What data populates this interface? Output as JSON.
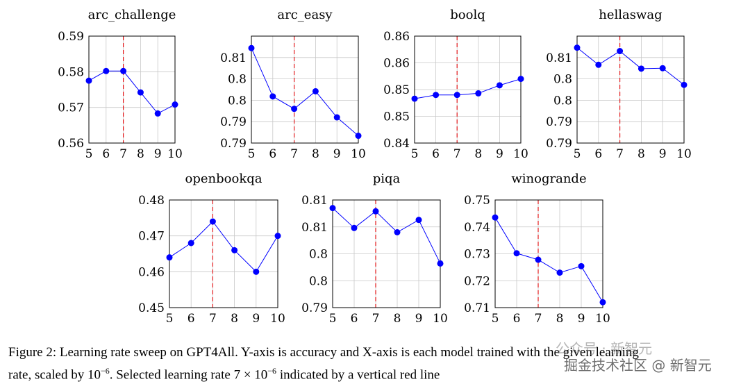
{
  "chart_data": [
    {
      "type": "line",
      "title": "arc_challenge",
      "x": [
        5,
        6,
        7,
        8,
        9,
        10
      ],
      "values": [
        0.5775,
        0.5802,
        0.5802,
        0.5742,
        0.5683,
        0.5708
      ],
      "xticks": [
        "5",
        "6",
        "7",
        "8",
        "9",
        "10"
      ],
      "ylim": [
        0.56,
        0.59
      ],
      "yticks": [
        0.56,
        0.57,
        0.58,
        0.59
      ],
      "ytick_labels": [
        "0.56",
        "0.57",
        "0.58",
        "0.59"
      ],
      "selected_x": 7
    },
    {
      "type": "line",
      "title": "arc_easy",
      "x": [
        5,
        6,
        7,
        8,
        9,
        10
      ],
      "values": [
        0.8122,
        0.8009,
        0.798,
        0.8021,
        0.796,
        0.7917
      ],
      "xticks": [
        "5",
        "6",
        "7",
        "8",
        "9",
        "10"
      ],
      "ylim": [
        0.79,
        0.815
      ],
      "yticks": [
        0.79,
        0.795,
        0.8,
        0.805,
        0.81
      ],
      "ytick_labels": [
        "0.79",
        "0.79",
        "0.8",
        "0.8",
        "0.81"
      ],
      "selected_x": 7
    },
    {
      "type": "line",
      "title": "boolq",
      "x": [
        5,
        6,
        7,
        8,
        9,
        10
      ],
      "values": [
        0.8483,
        0.849,
        0.849,
        0.8493,
        0.8508,
        0.852
      ],
      "xticks": [
        "5",
        "6",
        "7",
        "8",
        "9",
        "10"
      ],
      "ylim": [
        0.84,
        0.86
      ],
      "yticks": [
        0.84,
        0.845,
        0.85,
        0.855,
        0.86
      ],
      "ytick_labels": [
        "0.84",
        "0.85",
        "0.85",
        "0.86",
        "0.86"
      ],
      "selected_x": 7
    },
    {
      "type": "line",
      "title": "hellaswag",
      "x": [
        5,
        6,
        7,
        8,
        9,
        10
      ],
      "values": [
        0.8123,
        0.8083,
        0.8115,
        0.8074,
        0.8075,
        0.8036
      ],
      "xticks": [
        "5",
        "6",
        "7",
        "8",
        "9",
        "10"
      ],
      "ylim": [
        0.79,
        0.815
      ],
      "yticks": [
        0.79,
        0.795,
        0.8,
        0.805,
        0.81
      ],
      "ytick_labels": [
        "0.79",
        "0.79",
        "0.8",
        "0.8",
        "0.81"
      ],
      "selected_x": 7
    },
    {
      "type": "line",
      "title": "openbookqa",
      "x": [
        5,
        6,
        7,
        8,
        9,
        10
      ],
      "values": [
        0.464,
        0.468,
        0.474,
        0.466,
        0.46,
        0.47
      ],
      "xticks": [
        "5",
        "6",
        "7",
        "8",
        "9",
        "10"
      ],
      "ylim": [
        0.45,
        0.48
      ],
      "yticks": [
        0.45,
        0.46,
        0.47,
        0.48
      ],
      "ytick_labels": [
        "0.45",
        "0.46",
        "0.47",
        "0.48"
      ],
      "selected_x": 7
    },
    {
      "type": "line",
      "title": "piqa",
      "x": [
        5,
        6,
        7,
        8,
        9,
        10
      ],
      "values": [
        0.8085,
        0.8048,
        0.8079,
        0.804,
        0.8063,
        0.7982
      ],
      "xticks": [
        "5",
        "6",
        "7",
        "8",
        "9",
        "10"
      ],
      "ylim": [
        0.79,
        0.81
      ],
      "yticks": [
        0.79,
        0.795,
        0.8,
        0.805,
        0.81
      ],
      "ytick_labels": [
        "0.79",
        "0.8",
        "0.8",
        "0.81",
        "0.81"
      ],
      "selected_x": 7
    },
    {
      "type": "line",
      "title": "winogrande",
      "x": [
        5,
        6,
        7,
        8,
        9,
        10
      ],
      "values": [
        0.7435,
        0.7302,
        0.7278,
        0.723,
        0.7254,
        0.712
      ],
      "xticks": [
        "5",
        "6",
        "7",
        "8",
        "9",
        "10"
      ],
      "ylim": [
        0.71,
        0.75
      ],
      "yticks": [
        0.71,
        0.72,
        0.73,
        0.74,
        0.75
      ],
      "ytick_labels": [
        "0.71",
        "0.72",
        "0.73",
        "0.74",
        "0.75"
      ],
      "selected_x": 7
    }
  ],
  "colors": {
    "series": "#0000ff",
    "selected_line": "#e31a1c",
    "grid": "#c8c8c8"
  },
  "caption": {
    "line1": "Figure 2: Learning rate sweep on GPT4All. Y-axis is accuracy and X-axis is each model trained with the given learning",
    "line2_a": "rate, scaled by 10",
    "line2_exp": "−6",
    "line2_b": ". Selected learning rate 7 × 10",
    "line2_exp2": "−6",
    "line2_c": " indicated by a vertical red line"
  },
  "watermark": {
    "line1": "公众号 · 新智元",
    "line2": "掘金技术社区 @ 新智元"
  }
}
